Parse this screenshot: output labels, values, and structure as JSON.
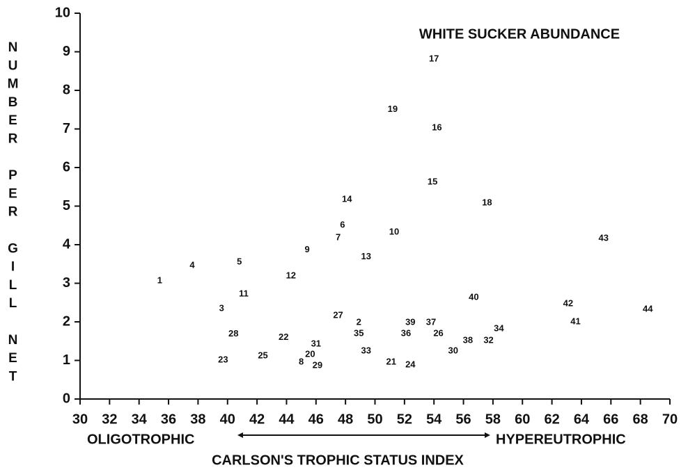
{
  "chart_data": {
    "type": "scatter",
    "title": "WHITE SUCKER ABUNDANCE",
    "y_label": "NUMBER PER GILL NET",
    "x_label": "CARLSON'S TROPHIC STATUS INDEX",
    "annotations": [
      "OLIGOTROPHIC",
      "HYPEREUTROPHIC"
    ],
    "xlim": [
      30,
      70
    ],
    "ylim": [
      0,
      10
    ],
    "xticks": [
      30,
      32,
      34,
      36,
      38,
      40,
      42,
      44,
      46,
      48,
      50,
      52,
      54,
      56,
      58,
      60,
      62,
      64,
      66,
      68,
      70
    ],
    "yticks": [
      0,
      1,
      2,
      3,
      4,
      5,
      6,
      7,
      8,
      9,
      10
    ],
    "color": "#111111",
    "series": [
      {
        "labels": [
          "1",
          "4",
          "5",
          "11",
          "3",
          "28",
          "23",
          "25",
          "22",
          "12",
          "9",
          "31",
          "20",
          "8",
          "29",
          "14",
          "6",
          "7",
          "27",
          "2",
          "35",
          "13",
          "33",
          "19",
          "10",
          "21",
          "24",
          "39",
          "36",
          "37",
          "26",
          "17",
          "16",
          "15",
          "18",
          "40",
          "30",
          "38",
          "32",
          "34",
          "43",
          "42",
          "41",
          "44"
        ],
        "x": [
          35.4,
          37.6,
          40.8,
          41.1,
          39.6,
          40.4,
          39.7,
          42.4,
          43.8,
          44.3,
          45.4,
          46.0,
          45.6,
          45.0,
          46.1,
          48.1,
          47.8,
          47.5,
          47.5,
          48.9,
          48.9,
          49.4,
          49.4,
          51.2,
          51.3,
          51.1,
          52.4,
          52.4,
          52.1,
          53.8,
          54.3,
          54.0,
          54.2,
          53.9,
          57.6,
          56.7,
          55.3,
          56.3,
          57.7,
          58.4,
          65.5,
          63.1,
          63.6,
          68.5
        ],
        "values": [
          3.06,
          3.46,
          3.55,
          2.72,
          2.34,
          1.68,
          1.01,
          1.12,
          1.59,
          3.19,
          3.86,
          1.42,
          1.15,
          0.95,
          0.86,
          5.17,
          4.5,
          4.18,
          2.16,
          1.98,
          1.69,
          3.68,
          1.24,
          7.5,
          4.32,
          0.95,
          0.88,
          1.98,
          1.69,
          1.98,
          1.69,
          8.81,
          7.03,
          5.62,
          5.08,
          2.63,
          1.24,
          1.51,
          1.51,
          1.82,
          4.16,
          2.47,
          2.0,
          2.32
        ]
      }
    ]
  }
}
